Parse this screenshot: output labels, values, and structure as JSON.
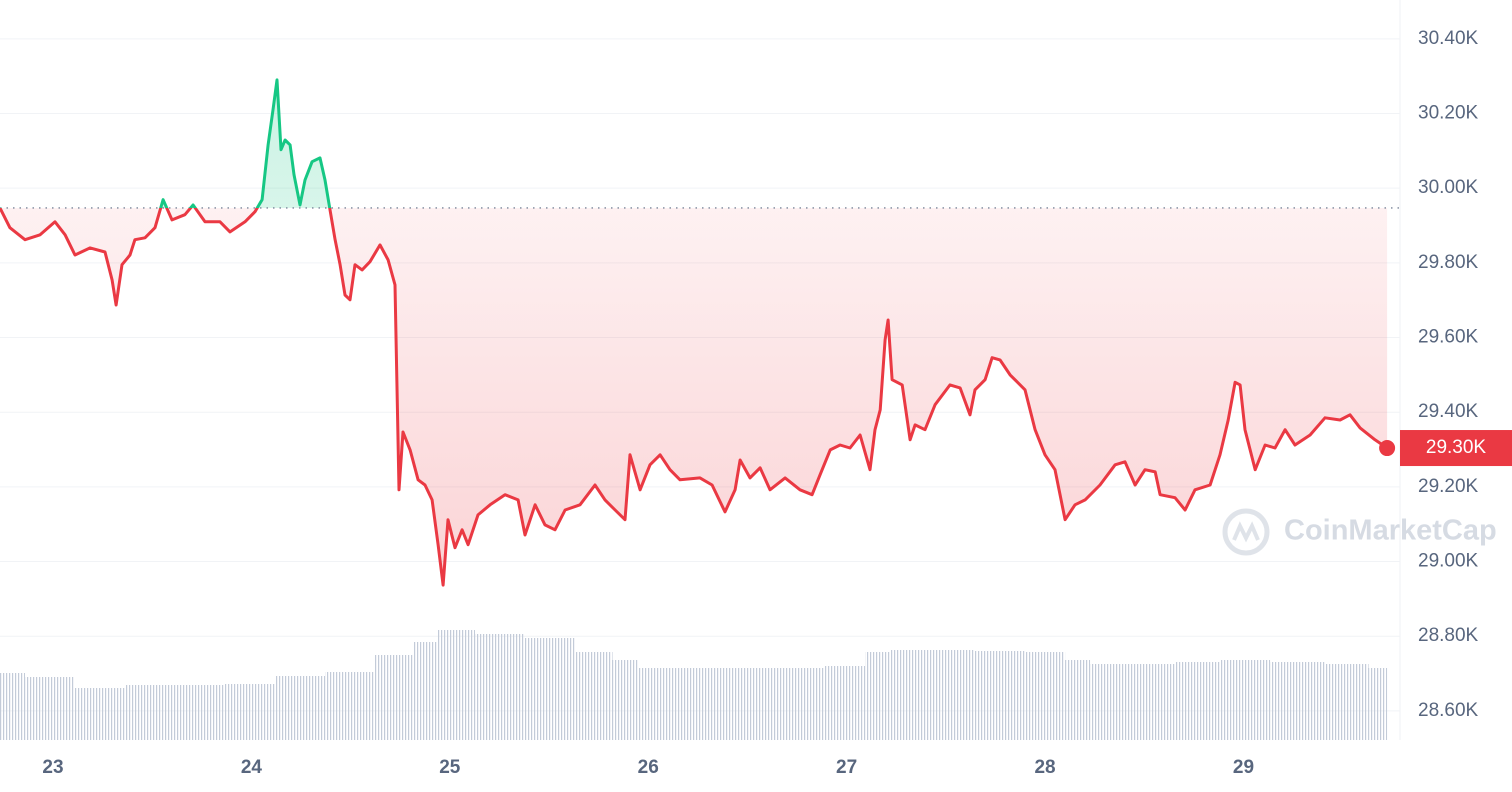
{
  "chart_data": {
    "type": "line",
    "x": [
      22.733,
      22.783,
      22.859,
      22.935,
      23.01,
      23.061,
      23.111,
      23.187,
      23.262,
      23.298,
      23.318,
      23.348,
      23.388,
      23.413,
      23.464,
      23.514,
      23.555,
      23.6,
      23.665,
      23.706,
      23.766,
      23.842,
      23.892,
      23.968,
      24.018,
      24.054,
      24.084,
      24.109,
      24.129,
      24.149,
      24.17,
      24.195,
      24.215,
      24.245,
      24.27,
      24.306,
      24.346,
      24.371,
      24.396,
      24.422,
      24.447,
      24.472,
      24.497,
      24.522,
      24.558,
      24.598,
      24.648,
      24.689,
      24.724,
      24.744,
      24.764,
      24.8,
      24.84,
      24.875,
      24.911,
      24.941,
      24.966,
      24.991,
      25.026,
      25.062,
      25.092,
      25.142,
      25.203,
      25.278,
      25.344,
      25.379,
      25.43,
      25.48,
      25.53,
      25.581,
      25.656,
      25.732,
      25.782,
      25.833,
      25.883,
      25.908,
      25.959,
      26.009,
      26.06,
      26.11,
      26.16,
      26.261,
      26.322,
      26.387,
      26.438,
      26.463,
      26.513,
      26.564,
      26.614,
      26.69,
      26.765,
      26.826,
      26.866,
      26.917,
      26.967,
      27.017,
      27.068,
      27.118,
      27.143,
      27.169,
      27.194,
      27.209,
      27.229,
      27.28,
      27.32,
      27.345,
      27.395,
      27.446,
      27.521,
      27.572,
      27.622,
      27.647,
      27.698,
      27.733,
      27.773,
      27.824,
      27.899,
      27.95,
      28.0,
      28.05,
      28.101,
      28.151,
      28.202,
      28.277,
      28.353,
      28.403,
      28.454,
      28.504,
      28.555,
      28.58,
      28.655,
      28.706,
      28.756,
      28.832,
      28.882,
      28.923,
      28.958,
      28.983,
      29.008,
      29.059,
      29.109,
      29.159,
      29.21,
      29.26,
      29.336,
      29.411,
      29.487,
      29.537,
      29.588,
      29.663,
      29.724
    ],
    "values": [
      29947,
      29894,
      29862,
      29875,
      29910,
      29875,
      29821,
      29840,
      29829,
      29754,
      29687,
      29795,
      29821,
      29862,
      29867,
      29894,
      29969,
      29915,
      29929,
      29955,
      29910,
      29910,
      29883,
      29910,
      29937,
      29969,
      30116,
      30210,
      30290,
      30103,
      30129,
      30116,
      30036,
      29955,
      30022,
      30071,
      30081,
      30022,
      29942,
      29862,
      29795,
      29714,
      29701,
      29795,
      29781,
      29803,
      29848,
      29808,
      29741,
      29192,
      29347,
      29299,
      29219,
      29205,
      29165,
      29045,
      28937,
      29112,
      29037,
      29085,
      29045,
      29125,
      29152,
      29179,
      29165,
      29071,
      29152,
      29098,
      29085,
      29138,
      29152,
      29205,
      29165,
      29138,
      29112,
      29286,
      29192,
      29259,
      29286,
      29246,
      29219,
      29224,
      29205,
      29133,
      29192,
      29272,
      29224,
      29251,
      29192,
      29224,
      29192,
      29179,
      29232,
      29299,
      29312,
      29304,
      29339,
      29246,
      29353,
      29406,
      29594,
      29647,
      29487,
      29473,
      29326,
      29366,
      29353,
      29420,
      29473,
      29465,
      29393,
      29460,
      29487,
      29546,
      29540,
      29500,
      29460,
      29353,
      29286,
      29246,
      29112,
      29152,
      29165,
      29205,
      29259,
      29267,
      29205,
      29246,
      29240,
      29179,
      29171,
      29138,
      29192,
      29205,
      29286,
      29379,
      29480,
      29473,
      29353,
      29246,
      29312,
      29304,
      29353,
      29312,
      29339,
      29385,
      29379,
      29393,
      29358,
      29326,
      29304
    ],
    "reference_value": 29947,
    "last_value_label": "29.30K",
    "up_color": "#16c784",
    "down_color": "#ea3943",
    "volume": {
      "x": [
        22.733,
        22.985,
        23.237,
        23.489,
        23.741,
        23.993,
        24.245,
        24.497,
        24.749,
        24.875,
        25.001,
        25.253,
        25.505,
        25.757,
        25.883,
        26.009,
        26.261,
        26.513,
        26.765,
        27.017,
        27.169,
        27.269,
        27.521,
        27.773,
        28.025,
        28.177,
        28.277,
        28.529,
        28.781,
        28.983,
        29.286,
        29.537,
        29.724
      ],
      "values": [
        67,
        63,
        52,
        55,
        55,
        56,
        64,
        68,
        85,
        98,
        110,
        106,
        102,
        88,
        80,
        72,
        72,
        72,
        72,
        74,
        88,
        90,
        90,
        89,
        88,
        80,
        76,
        76,
        78,
        80,
        78,
        76,
        72
      ],
      "color": "#cfd6e2"
    },
    "xlim": [
      22.733,
      29.789
    ],
    "xticks": [
      23,
      24,
      25,
      26,
      27,
      28,
      29
    ],
    "ylim": [
      28522,
      30504
    ],
    "yticks": [
      {
        "value": 28600,
        "label": "28.60K"
      },
      {
        "value": 28800,
        "label": "28.80K"
      },
      {
        "value": 29000,
        "label": "29.00K"
      },
      {
        "value": 29200,
        "label": "29.20K"
      },
      {
        "value": 29400,
        "label": "29.40K"
      },
      {
        "value": 29600,
        "label": "29.60K"
      },
      {
        "value": 29800,
        "label": "29.80K"
      },
      {
        "value": 30000,
        "label": "30.00K"
      },
      {
        "value": 30200,
        "label": "30.20K"
      },
      {
        "value": 30400,
        "label": "30.40K"
      }
    ],
    "grid": true,
    "watermark": "CoinMarketCap"
  }
}
